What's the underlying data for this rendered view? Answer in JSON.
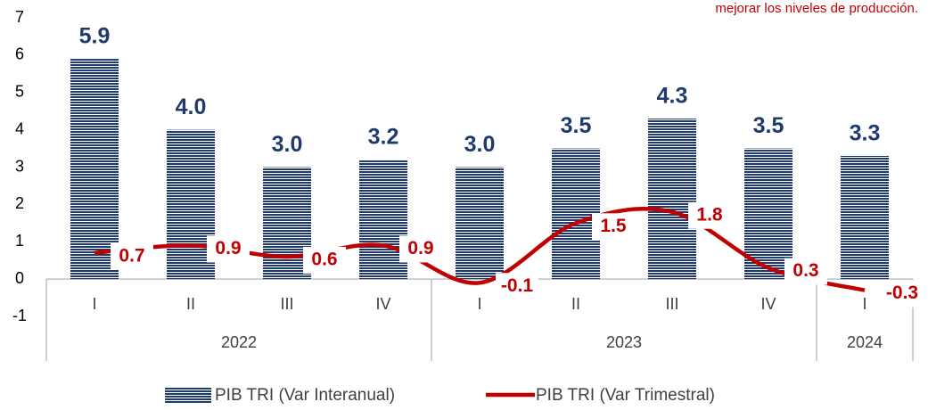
{
  "chart_data": {
    "type": "bar_line",
    "annotation": "mejorar los niveles de producción.",
    "groups": [
      {
        "label": "2022",
        "categories": [
          "I",
          "II",
          "III",
          "IV"
        ]
      },
      {
        "label": "2023",
        "categories": [
          "I",
          "II",
          "III",
          "IV"
        ]
      },
      {
        "label": "2024",
        "categories": [
          "I"
        ]
      }
    ],
    "series": [
      {
        "name": "PIB TRI (Var Interanual)",
        "type": "bar",
        "color": "#1f3a6e",
        "values": [
          5.9,
          4.0,
          3.0,
          3.2,
          3.0,
          3.5,
          4.3,
          3.5,
          3.3
        ],
        "value_labels": [
          "5.9",
          "4.0",
          "3.0",
          "3.2",
          "3.0",
          "3.5",
          "4.3",
          "3.5",
          "3.3"
        ]
      },
      {
        "name": "PIB TRI (Var Trimestral)",
        "type": "line",
        "color": "#c00000",
        "values": [
          0.7,
          0.9,
          0.6,
          0.9,
          -0.1,
          1.5,
          1.8,
          0.3,
          -0.3
        ]
      }
    ],
    "ylim": [
      -1,
      7
    ],
    "yticks": [
      -1,
      0,
      1,
      2,
      3,
      4,
      5,
      6,
      7
    ]
  }
}
